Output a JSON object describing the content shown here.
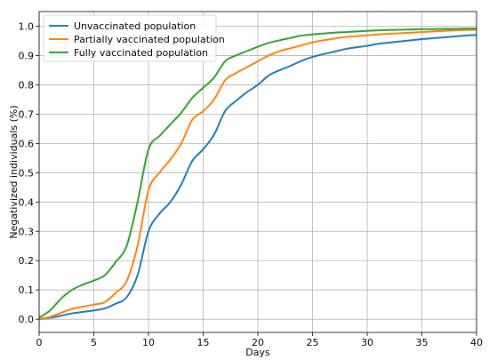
{
  "chart_data": {
    "type": "line",
    "title": "",
    "xlabel": "Days",
    "ylabel": "Negativized individuals (%)",
    "xlim": [
      0,
      40
    ],
    "ylim": [
      -0.045,
      1.05
    ],
    "xticks": [
      0,
      5,
      10,
      15,
      20,
      25,
      30,
      35,
      40
    ],
    "yticks": [
      0.0,
      0.1,
      0.2,
      0.3,
      0.4,
      0.5,
      0.6,
      0.7,
      0.8,
      0.9,
      1.0
    ],
    "grid": true,
    "legend_position": "top-left",
    "series": [
      {
        "name": "Unvaccinated population",
        "color": "#1f77b4",
        "x": [
          0,
          1,
          2,
          3,
          4,
          5,
          6,
          7,
          8,
          9,
          10,
          11,
          12,
          13,
          14,
          15,
          16,
          17,
          18,
          19,
          20,
          21,
          22,
          23,
          24,
          25,
          26,
          27,
          28,
          29,
          30,
          31,
          32,
          33,
          34,
          35,
          36,
          37,
          38,
          39,
          40
        ],
        "y": [
          0.0,
          0.005,
          0.012,
          0.02,
          0.025,
          0.03,
          0.037,
          0.053,
          0.075,
          0.15,
          0.3,
          0.36,
          0.4,
          0.46,
          0.54,
          0.58,
          0.63,
          0.71,
          0.745,
          0.775,
          0.8,
          0.832,
          0.85,
          0.865,
          0.882,
          0.895,
          0.905,
          0.913,
          0.922,
          0.928,
          0.933,
          0.94,
          0.944,
          0.948,
          0.952,
          0.956,
          0.959,
          0.962,
          0.965,
          0.968,
          0.97
        ]
      },
      {
        "name": "Partially vaccinated population",
        "color": "#ff7f0e",
        "x": [
          0,
          1,
          2,
          3,
          4,
          5,
          6,
          7,
          8,
          9,
          10,
          11,
          12,
          13,
          14,
          15,
          16,
          17,
          18,
          19,
          20,
          21,
          22,
          23,
          24,
          25,
          26,
          27,
          28,
          29,
          30,
          31,
          32,
          33,
          34,
          35,
          36,
          37,
          38,
          39,
          40
        ],
        "y": [
          0.0,
          0.008,
          0.022,
          0.035,
          0.043,
          0.05,
          0.058,
          0.09,
          0.13,
          0.25,
          0.44,
          0.5,
          0.545,
          0.6,
          0.68,
          0.71,
          0.75,
          0.815,
          0.84,
          0.86,
          0.88,
          0.9,
          0.915,
          0.925,
          0.935,
          0.945,
          0.952,
          0.958,
          0.963,
          0.966,
          0.969,
          0.972,
          0.974,
          0.976,
          0.978,
          0.98,
          0.982,
          0.984,
          0.986,
          0.987,
          0.988
        ]
      },
      {
        "name": "Fully vaccinated population",
        "color": "#2ca02c",
        "x": [
          0,
          1,
          2,
          3,
          4,
          5,
          6,
          7,
          8,
          9,
          10,
          11,
          12,
          13,
          14,
          15,
          16,
          17,
          18,
          19,
          20,
          21,
          22,
          23,
          24,
          25,
          26,
          27,
          28,
          29,
          30,
          31,
          32,
          33,
          34,
          35,
          36,
          37,
          38,
          39,
          40
        ],
        "y": [
          0.005,
          0.03,
          0.07,
          0.1,
          0.118,
          0.132,
          0.15,
          0.195,
          0.25,
          0.4,
          0.58,
          0.625,
          0.665,
          0.705,
          0.755,
          0.79,
          0.825,
          0.88,
          0.9,
          0.915,
          0.93,
          0.943,
          0.952,
          0.96,
          0.968,
          0.972,
          0.975,
          0.978,
          0.98,
          0.982,
          0.984,
          0.986,
          0.987,
          0.988,
          0.989,
          0.99,
          0.99,
          0.991,
          0.991,
          0.992,
          0.992
        ]
      }
    ]
  }
}
